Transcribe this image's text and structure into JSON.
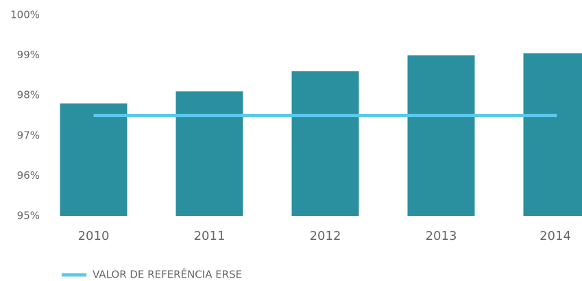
{
  "chart_data": {
    "type": "bar",
    "categories": [
      "2010",
      "2011",
      "2012",
      "2013",
      "2014"
    ],
    "series": [
      {
        "type": "bar",
        "color": "#2a8f9e",
        "values": [
          97.8,
          98.1,
          98.6,
          99.0,
          99.05
        ]
      },
      {
        "type": "line",
        "name": "VALOR DE REFERÊNCIA ERSE",
        "color": "#5bc8ec",
        "values": [
          97.5,
          97.5,
          97.5,
          97.5,
          97.5
        ]
      }
    ],
    "ylim": [
      95,
      100
    ],
    "yticks": [
      {
        "value": 95,
        "label": "95%"
      },
      {
        "value": 96,
        "label": "96%"
      },
      {
        "value": 97,
        "label": "97%"
      },
      {
        "value": 98,
        "label": "98%"
      },
      {
        "value": 99,
        "label": "99%"
      },
      {
        "value": 100,
        "label": "100%"
      }
    ],
    "legend": "bottom-left"
  }
}
